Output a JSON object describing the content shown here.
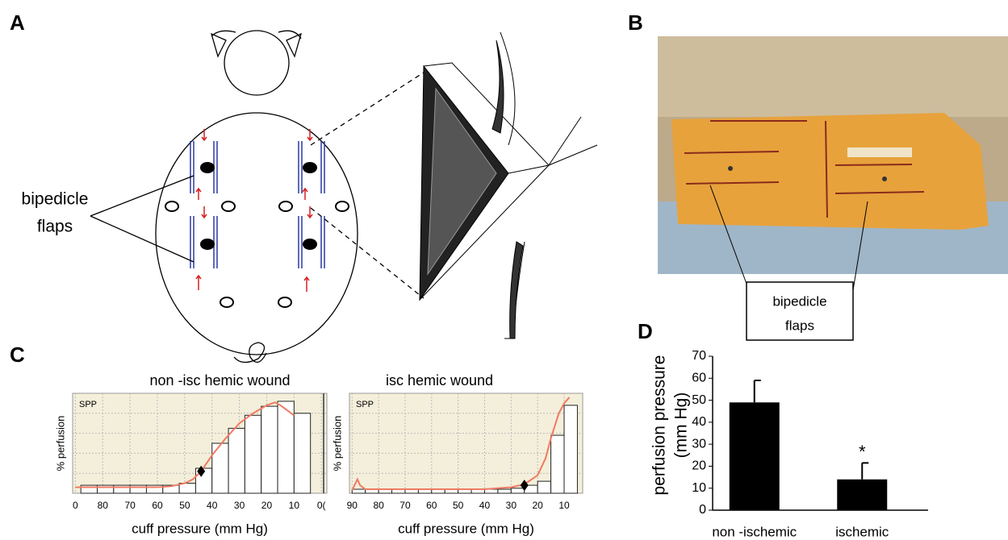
{
  "panels": {
    "A": {
      "label": "A",
      "callout": [
        "bipedicle",
        "flaps"
      ]
    },
    "B": {
      "label": "B",
      "callout": [
        "bipedicle",
        "flaps"
      ]
    },
    "C": {
      "label": "C"
    },
    "D": {
      "label": "D"
    }
  },
  "chart_data": [
    {
      "type": "histogram",
      "title": "non -isc hemic wound",
      "label": "SPP",
      "xlabel": "cuff pressure (mm Hg)",
      "ylabel": "% perfusion",
      "xlim": [
        91,
        -2
      ],
      "ylim": [
        0,
        100
      ],
      "xticks": [
        {
          "value": 90,
          "label": "0"
        },
        80,
        70,
        60,
        50,
        40,
        30,
        20,
        10,
        {
          "value": 0,
          "label": "0("
        }
      ],
      "bins": [
        88,
        82,
        76,
        70,
        64,
        58,
        52,
        46,
        40,
        34,
        28,
        22,
        16,
        10,
        4
      ],
      "values": [
        8,
        8,
        8,
        8,
        8,
        8,
        10,
        25,
        50,
        65,
        78,
        87,
        92,
        80
      ],
      "curve": {
        "x": [
          90,
          80,
          70,
          60,
          55,
          50,
          47,
          44,
          40,
          35,
          30,
          25,
          20,
          17,
          15,
          12,
          10
        ],
        "values": [
          6,
          6,
          6,
          6,
          7,
          10,
          14,
          22,
          38,
          55,
          70,
          80,
          88,
          91,
          88,
          82,
          78
        ]
      },
      "marker": {
        "x": 44,
        "y": 22
      },
      "color": "#ffffff",
      "curve_color": "#f07a62",
      "grid": true
    },
    {
      "type": "histogram",
      "title": "isc hemic wound",
      "label": "SPP",
      "xlabel": "cuff pressure (mm Hg)",
      "ylabel": "% perfusion",
      "xlim": [
        91,
        3
      ],
      "ylim": [
        0,
        100
      ],
      "xticks": [
        90,
        80,
        70,
        60,
        50,
        40,
        30,
        20,
        10
      ],
      "bins": [
        90,
        85,
        80,
        75,
        70,
        65,
        60,
        55,
        50,
        45,
        40,
        35,
        30,
        25,
        20,
        15,
        10,
        5
      ],
      "values": [
        4,
        4,
        4,
        4,
        4,
        4,
        4,
        4,
        4,
        4,
        4,
        4,
        5,
        8,
        12,
        58,
        88
      ],
      "curve": {
        "x": [
          90,
          88,
          87,
          85,
          80,
          70,
          60,
          50,
          40,
          35,
          30,
          25,
          20,
          17,
          15,
          12,
          10,
          8
        ],
        "values": [
          3,
          14,
          8,
          4,
          4,
          4,
          4,
          4,
          4,
          5,
          6,
          9,
          18,
          35,
          55,
          80,
          90,
          96
        ]
      },
      "marker": {
        "x": 25,
        "y": 8
      },
      "color": "#ffffff",
      "curve_color": "#f07a62",
      "grid": true
    },
    {
      "type": "bar",
      "ylabel": [
        "perfusion pressure",
        "(mm Hg)"
      ],
      "categories": [
        "non -ischemic",
        "ischemic"
      ],
      "values": [
        49,
        14
      ],
      "errors": [
        10,
        7.5
      ],
      "ylim": [
        0,
        70
      ],
      "yticks": [
        0,
        10,
        20,
        30,
        40,
        50,
        60,
        70
      ],
      "color": "#000000",
      "annotations": [
        {
          "category": "ischemic",
          "text": "*"
        }
      ]
    }
  ]
}
